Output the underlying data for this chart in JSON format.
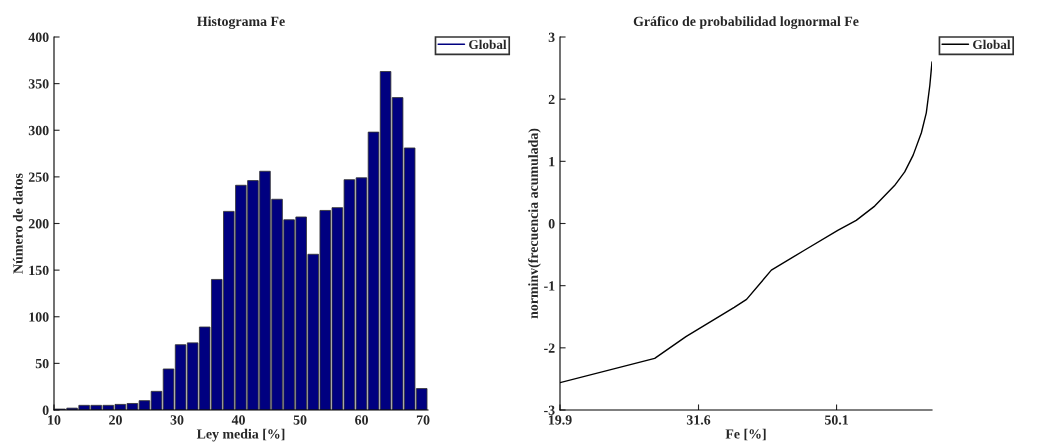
{
  "chart_data": [
    {
      "type": "histogram",
      "title": "Histograma Fe",
      "xlabel": "Ley media [%]",
      "ylabel": "Número de datos",
      "bins": [
        10,
        11.96,
        13.92,
        15.88,
        17.84,
        19.8,
        21.76,
        23.72,
        25.68,
        27.64,
        29.6,
        31.56,
        33.52,
        35.48,
        37.44,
        39.4,
        41.36,
        43.32,
        45.28,
        47.24,
        49.2,
        51.16,
        53.12,
        55.08,
        57.04,
        59.0,
        60.96,
        62.92,
        64.88,
        66.84,
        68.8,
        70.76
      ],
      "series": [
        {
          "name": "Global",
          "color": "#000080",
          "values": [
            1,
            2,
            5,
            5,
            5,
            6,
            7,
            10,
            20,
            44,
            70,
            72,
            89,
            140,
            213,
            241,
            246,
            256,
            226,
            204,
            207,
            167,
            214,
            217,
            247,
            249,
            298,
            363,
            335,
            281,
            23
          ]
        }
      ],
      "xlim": [
        10,
        70.8
      ],
      "xticks": [
        10,
        20,
        30,
        40,
        50,
        60,
        70
      ],
      "ylim": [
        0,
        400
      ],
      "yticks": [
        0,
        50,
        100,
        150,
        200,
        250,
        300,
        350,
        400
      ],
      "legend": "top right",
      "grid": false
    },
    {
      "type": "line",
      "title": "Gráfico de probabilidad lognormal Fe",
      "xlabel": "Fe [%]",
      "ylabel": "norminv(frecuencia acumulada)",
      "log": "x",
      "series": [
        {
          "name": "Global",
          "color": "#000000",
          "x": [
            19.9,
            27.3,
            30.3,
            35.6,
            37.1,
            40.3,
            45.0,
            50.3,
            53.5,
            56.9,
            60.8,
            62.9,
            64.7,
            66.5,
            67.6,
            68.4,
            68.9
          ],
          "values": [
            -2.56,
            -2.17,
            -1.82,
            -1.35,
            -1.22,
            -0.75,
            -0.43,
            -0.11,
            0.05,
            0.28,
            0.61,
            0.83,
            1.1,
            1.46,
            1.78,
            2.22,
            2.6
          ]
        }
      ],
      "xlim": [
        19.9,
        68.9
      ],
      "xticks": [
        19.9,
        31.6,
        50.1
      ],
      "ylim": [
        -3,
        3
      ],
      "yticks": [
        -3,
        -2,
        -1,
        0,
        1,
        2,
        3
      ],
      "legend": "top right",
      "grid": false
    }
  ]
}
